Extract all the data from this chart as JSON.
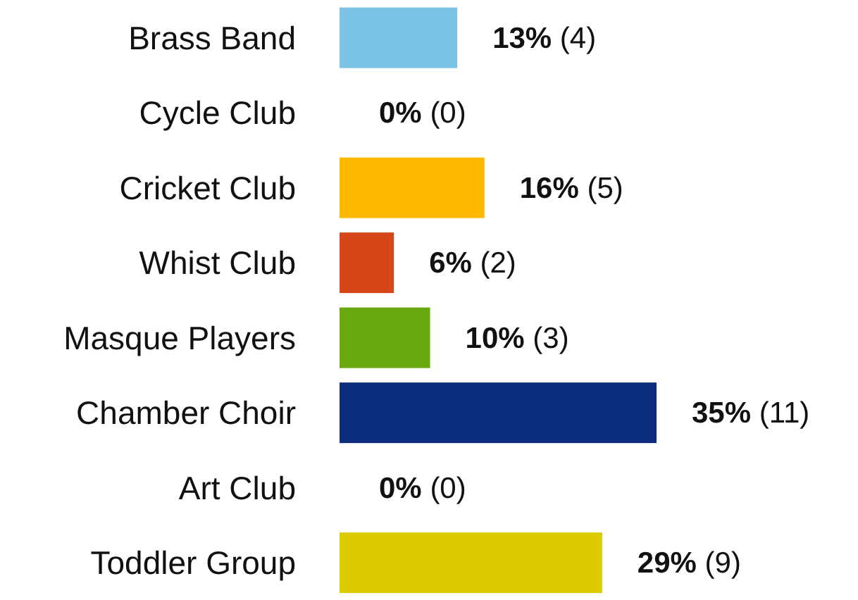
{
  "chart_data": {
    "type": "bar",
    "orientation": "horizontal",
    "categories": [
      "Brass Band",
      "Cycle Club",
      "Cricket Club",
      "Whist Club",
      "Masque Players",
      "Chamber Choir",
      "Art Club",
      "Toddler Group"
    ],
    "values": [
      13,
      0,
      16,
      6,
      10,
      35,
      0,
      29
    ],
    "colors": [
      "#7ac3e4",
      "#a0407a",
      "#ffb800",
      "#d64618",
      "#6aa80f",
      "#0b2d7c",
      "#d0428a",
      "#dccb00"
    ],
    "value_labels": [
      "13% (4)",
      "0% (0)",
      "16% (5)",
      "6% (2)",
      "10% (3)",
      "35% (11)",
      "0% (0)",
      "29% (9)"
    ],
    "grid": false,
    "legend": false
  }
}
